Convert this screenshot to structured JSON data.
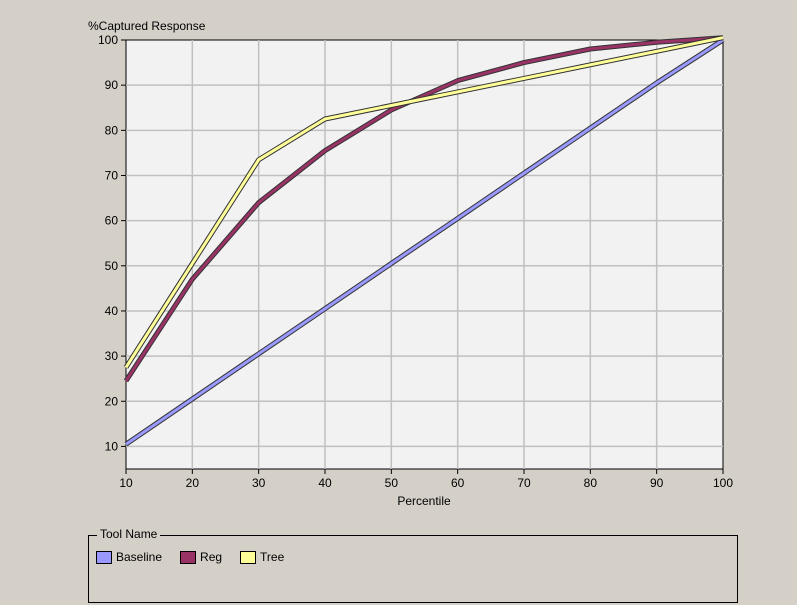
{
  "chart_data": {
    "type": "line",
    "title": "",
    "ylabel": "%Captured Response",
    "xlabel": "Percentile",
    "x": [
      10,
      20,
      30,
      40,
      50,
      60,
      70,
      80,
      90,
      100
    ],
    "xlim": [
      10,
      100
    ],
    "ylim": [
      5,
      100
    ],
    "xticks": [
      10,
      20,
      30,
      40,
      50,
      60,
      70,
      80,
      90,
      100
    ],
    "yticks": [
      10,
      20,
      30,
      40,
      50,
      60,
      70,
      80,
      90,
      100
    ],
    "grid": true,
    "legend_title": "Tool Name",
    "legend_placement": "bottom",
    "series": [
      {
        "name": "Baseline",
        "color": "#9999ff",
        "values": [
          10.5,
          20.5,
          30.5,
          40.5,
          50.5,
          60.5,
          70.5,
          80.5,
          90.5,
          100
        ]
      },
      {
        "name": "Reg",
        "color": "#993366",
        "values": [
          24.5,
          47,
          64,
          75.5,
          84.5,
          91,
          95,
          98,
          99.5,
          100.5
        ]
      },
      {
        "name": "Tree",
        "color": "#ffff99",
        "values": [
          27.5,
          50.5,
          73.5,
          82.5,
          85.5,
          88.5,
          91.5,
          94.5,
          97.5,
          100.5
        ]
      }
    ]
  }
}
